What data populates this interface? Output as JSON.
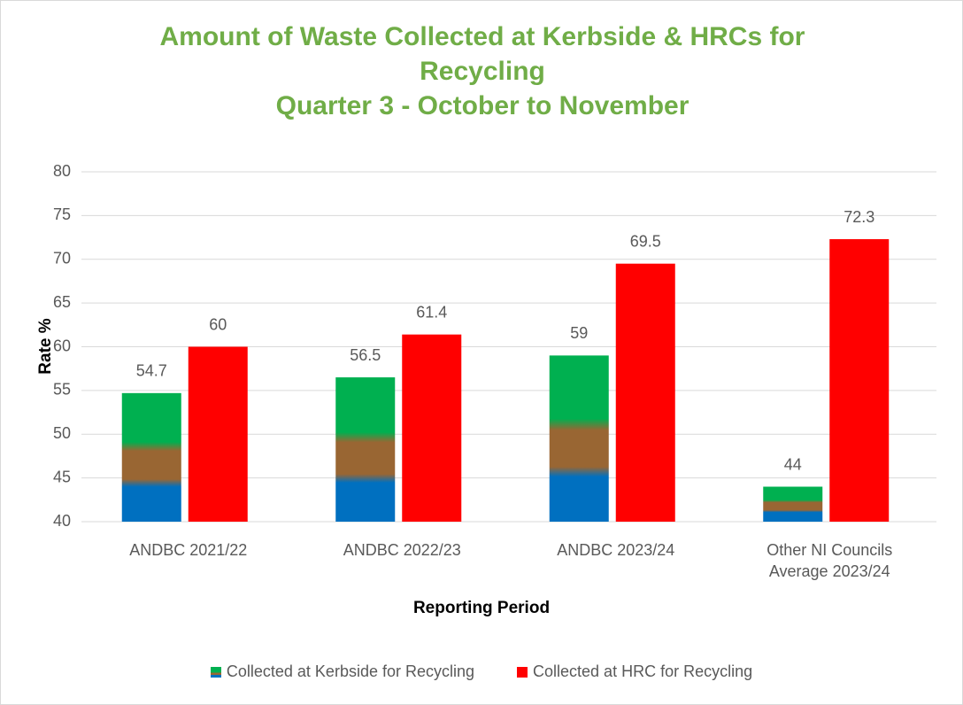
{
  "chart_data": {
    "type": "bar",
    "title": "Amount of Waste Collected at Kerbside & HRCs for Recycling",
    "subtitle": "Quarter 3 - October to November",
    "x_label": "Reporting Period",
    "y_label": "Rate %",
    "categories": [
      "ANDBC 2021/22",
      "ANDBC 2022/23",
      "ANDBC 2023/24",
      "Other NI Councils Average 2023/24"
    ],
    "series": [
      {
        "name": "Collected at Kerbside for Recycling",
        "color": "#00b050",
        "values": [
          54.7,
          56.5,
          59,
          44
        ]
      },
      {
        "name": "Collected at HRC for Recycling",
        "color": "#ff0000",
        "values": [
          60,
          61.4,
          69.5,
          72.3
        ]
      }
    ],
    "ylim": [
      40,
      80
    ],
    "yticks": [
      40,
      45,
      50,
      55,
      60,
      65,
      70,
      75,
      80
    ],
    "grid": true,
    "legend": "bottom"
  }
}
